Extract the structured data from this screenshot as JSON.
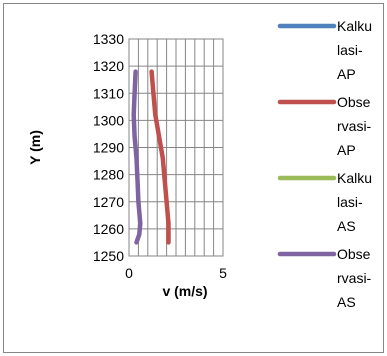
{
  "chart_data": {
    "type": "line",
    "xlabel": "v (m/s)",
    "ylabel": "Y (m)",
    "xlim": [
      0,
      5
    ],
    "ylim": [
      1250,
      1330
    ],
    "x_ticks": [
      "0",
      "5"
    ],
    "y_ticks": [
      "1250",
      "1260",
      "1270",
      "1280",
      "1290",
      "1300",
      "1310",
      "1320",
      "1330"
    ],
    "grid": true,
    "legend_position": "right",
    "series": [
      {
        "name": "Kalkulasi-AP",
        "color": "#4f81bd",
        "points": []
      },
      {
        "name": "Observasi-AP",
        "color": "#c0504d",
        "points": [
          [
            1.2,
            1318
          ],
          [
            1.3,
            1310
          ],
          [
            1.4,
            1302
          ],
          [
            1.6,
            1294
          ],
          [
            1.8,
            1286
          ],
          [
            1.9,
            1278
          ],
          [
            2.0,
            1270
          ],
          [
            2.1,
            1262
          ],
          [
            2.1,
            1255
          ]
        ]
      },
      {
        "name": "Kalkulasi-AS",
        "color": "#9bbb59",
        "points": []
      },
      {
        "name": "Observasi-AS",
        "color": "#8064a2",
        "points": [
          [
            0.35,
            1318
          ],
          [
            0.3,
            1310
          ],
          [
            0.25,
            1302
          ],
          [
            0.3,
            1294
          ],
          [
            0.4,
            1286
          ],
          [
            0.45,
            1278
          ],
          [
            0.5,
            1270
          ],
          [
            0.6,
            1262
          ],
          [
            0.55,
            1258
          ],
          [
            0.4,
            1255
          ]
        ]
      }
    ],
    "legend_lines": [
      [
        "Kalku",
        "lasi-",
        "AP"
      ],
      [
        "Obse",
        "rvasi-",
        "AP"
      ],
      [
        "Kalku",
        "lasi-",
        "AS"
      ],
      [
        "Obse",
        "rvasi-",
        "AS"
      ]
    ]
  }
}
